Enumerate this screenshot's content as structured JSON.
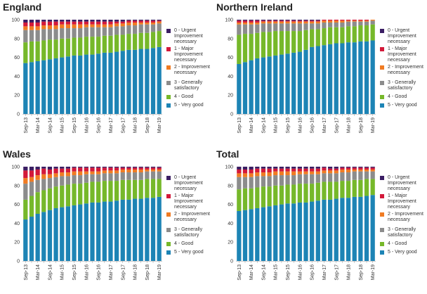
{
  "legend": [
    {
      "label": "0 - Urgent Improvement necessary",
      "color": "#3b1e63"
    },
    {
      "label": "1 - Major Improvement necessary",
      "color": "#d3193a"
    },
    {
      "label": "2 - Improvement necessary",
      "color": "#f07b23"
    },
    {
      "label": "3 - Generally satisfactory",
      "color": "#8c8c8c"
    },
    {
      "label": "4 - Good",
      "color": "#76b82a"
    },
    {
      "label": "5 - Very good",
      "color": "#1d84b5"
    }
  ],
  "chart_data": [
    {
      "type": "bar",
      "stacked": true,
      "title": "England",
      "ylim": [
        0,
        100
      ],
      "yticks": [
        0,
        20,
        40,
        60,
        80,
        100
      ],
      "categories": [
        "Sep-13",
        "",
        "Mar-14",
        "",
        "Sep-14",
        "",
        "Mar-15",
        "",
        "Sep-15",
        "",
        "Mar-16",
        "",
        "Sep-16",
        "",
        "Mar-17",
        "",
        "Sep-17",
        "",
        "Mar-18",
        "",
        "Sep-18",
        "",
        "Mar-19"
      ],
      "series": [
        {
          "name": "5 - Very good",
          "values": [
            54,
            55,
            56,
            57,
            58,
            59,
            60,
            61,
            62,
            62,
            63,
            63,
            64,
            65,
            65,
            66,
            67,
            68,
            68,
            69,
            69,
            70,
            71
          ]
        },
        {
          "name": "4 - Good",
          "values": [
            22,
            22,
            21,
            21,
            21,
            20,
            20,
            19,
            19,
            19,
            19,
            19,
            18,
            18,
            18,
            18,
            17,
            17,
            17,
            17,
            17,
            17,
            17
          ]
        },
        {
          "name": "3 - Generally satisfactory",
          "values": [
            13,
            12,
            12,
            12,
            11,
            11,
            11,
            11,
            10,
            10,
            10,
            10,
            10,
            9,
            9,
            9,
            9,
            9,
            9,
            9,
            9,
            8,
            8
          ]
        },
        {
          "name": "2 - Improvement necessary",
          "values": [
            4,
            4,
            4,
            4,
            4,
            4,
            4,
            4,
            4,
            4,
            3,
            3,
            3,
            3,
            3,
            3,
            3,
            3,
            3,
            2,
            2,
            2,
            2
          ]
        },
        {
          "name": "1 - Major Improvement necessary",
          "values": [
            4,
            4,
            4,
            4,
            4,
            4,
            3,
            3,
            3,
            3,
            3,
            3,
            3,
            3,
            3,
            2,
            2,
            2,
            2,
            2,
            2,
            2,
            1
          ]
        },
        {
          "name": "0 - Urgent Improvement necessary",
          "values": [
            3,
            3,
            3,
            2,
            2,
            2,
            2,
            2,
            2,
            2,
            2,
            2,
            2,
            2,
            2,
            2,
            2,
            1,
            1,
            1,
            1,
            1,
            1
          ]
        }
      ]
    },
    {
      "type": "bar",
      "stacked": true,
      "title": "Northern Ireland",
      "ylim": [
        0,
        100
      ],
      "yticks": [
        0,
        20,
        40,
        60,
        80,
        100
      ],
      "categories": [
        "Sep-13",
        "",
        "Mar-14",
        "",
        "Sep-14",
        "",
        "Mar-15",
        "",
        "Sep-15",
        "",
        "Mar-16",
        "",
        "Sep-16",
        "",
        "Mar-17",
        "",
        "Sep-17",
        "",
        "Mar-18",
        "",
        "Sep-18",
        "",
        "Mar-19"
      ],
      "series": [
        {
          "name": "5 - Very good",
          "values": [
            53,
            55,
            57,
            59,
            60,
            61,
            62,
            63,
            64,
            65,
            66,
            68,
            71,
            72,
            73,
            74,
            75,
            75,
            76,
            76,
            77,
            77,
            78
          ]
        },
        {
          "name": "4 - Good",
          "values": [
            31,
            30,
            28,
            27,
            27,
            26,
            26,
            25,
            24,
            23,
            22,
            21,
            19,
            18,
            18,
            18,
            17,
            17,
            17,
            17,
            17,
            17,
            17
          ]
        },
        {
          "name": "3 - Generally satisfactory",
          "values": [
            11,
            10,
            10,
            9,
            9,
            9,
            8,
            8,
            8,
            8,
            8,
            7,
            6,
            6,
            6,
            5,
            5,
            5,
            5,
            5,
            4,
            4,
            4
          ]
        },
        {
          "name": "2 - Improvement necessary",
          "values": [
            2,
            2,
            2,
            2,
            2,
            2,
            2,
            2,
            2,
            2,
            2,
            2,
            2,
            2,
            2,
            2,
            2,
            2,
            1,
            1,
            1,
            1,
            1
          ]
        },
        {
          "name": "1 - Major Improvement necessary",
          "values": [
            2,
            2,
            2,
            2,
            1,
            1,
            1,
            1,
            1,
            1,
            1,
            1,
            1,
            1,
            1,
            1,
            1,
            1,
            1,
            1,
            1,
            1,
            0
          ]
        },
        {
          "name": "0 - Urgent Improvement necessary",
          "values": [
            1,
            1,
            1,
            1,
            1,
            1,
            1,
            1,
            1,
            1,
            1,
            1,
            1,
            1,
            0,
            0,
            0,
            0,
            0,
            0,
            0,
            0,
            0
          ]
        }
      ]
    },
    {
      "type": "bar",
      "stacked": true,
      "title": "Wales",
      "ylim": [
        0,
        100
      ],
      "yticks": [
        0,
        20,
        40,
        60,
        80,
        100
      ],
      "categories": [
        "Sep-13",
        "",
        "Mar-14",
        "",
        "Sep-14",
        "",
        "Mar-15",
        "",
        "Sep-15",
        "",
        "Mar-16",
        "",
        "Sep-16",
        "",
        "Mar-17",
        "",
        "Sep-17",
        "",
        "Mar-18",
        "",
        "Sep-18",
        "",
        "Mar-19"
      ],
      "series": [
        {
          "name": "5 - Very good",
          "values": [
            44,
            47,
            50,
            52,
            54,
            56,
            57,
            58,
            59,
            60,
            61,
            62,
            62,
            63,
            63,
            64,
            65,
            65,
            66,
            66,
            67,
            67,
            68
          ]
        },
        {
          "name": "4 - Good",
          "values": [
            21,
            22,
            23,
            23,
            23,
            23,
            23,
            23,
            23,
            22,
            22,
            22,
            22,
            22,
            22,
            21,
            21,
            21,
            20,
            20,
            20,
            20,
            19
          ]
        },
        {
          "name": "3 - Generally satisfactory",
          "values": [
            17,
            15,
            13,
            12,
            11,
            10,
            10,
            9,
            9,
            9,
            9,
            8,
            8,
            8,
            8,
            8,
            8,
            8,
            8,
            8,
            8,
            8,
            8
          ]
        },
        {
          "name": "2 - Improvement necessary",
          "values": [
            6,
            5,
            5,
            5,
            4,
            4,
            4,
            4,
            4,
            4,
            3,
            3,
            3,
            3,
            3,
            3,
            3,
            3,
            3,
            3,
            2,
            2,
            2
          ]
        },
        {
          "name": "1 - Major Improvement necessary",
          "values": [
            8,
            7,
            6,
            6,
            5,
            5,
            4,
            4,
            4,
            4,
            4,
            4,
            4,
            3,
            3,
            3,
            2,
            2,
            2,
            2,
            2,
            2,
            2
          ]
        },
        {
          "name": "0 - Urgent Improvement necessary",
          "values": [
            4,
            4,
            3,
            2,
            3,
            2,
            2,
            2,
            1,
            1,
            1,
            1,
            1,
            1,
            1,
            1,
            1,
            1,
            1,
            1,
            1,
            1,
            1
          ]
        }
      ]
    },
    {
      "type": "bar",
      "stacked": true,
      "title": "Total",
      "ylim": [
        0,
        100
      ],
      "yticks": [
        0,
        20,
        40,
        60,
        80,
        100
      ],
      "categories": [
        "Sep-13",
        "",
        "Mar-14",
        "",
        "Sep-14",
        "",
        "Mar-15",
        "",
        "Sep-15",
        "",
        "Mar-16",
        "",
        "Sep-16",
        "",
        "Mar-17",
        "",
        "Sep-17",
        "",
        "Mar-18",
        "",
        "Sep-18",
        "",
        "Mar-19"
      ],
      "series": [
        {
          "name": "5 - Very good",
          "values": [
            53,
            54,
            55,
            56,
            57,
            58,
            59,
            60,
            61,
            61,
            62,
            62,
            63,
            64,
            65,
            65,
            66,
            67,
            67,
            68,
            68,
            69,
            70
          ]
        },
        {
          "name": "4 - Good",
          "values": [
            23,
            23,
            22,
            22,
            22,
            21,
            21,
            20,
            20,
            20,
            20,
            20,
            19,
            19,
            19,
            19,
            18,
            18,
            18,
            18,
            18,
            18,
            17
          ]
        },
        {
          "name": "3 - Generally satisfactory",
          "values": [
            13,
            12,
            12,
            12,
            11,
            11,
            11,
            11,
            10,
            10,
            10,
            10,
            10,
            9,
            9,
            9,
            9,
            9,
            9,
            9,
            9,
            8,
            8
          ]
        },
        {
          "name": "2 - Improvement necessary",
          "values": [
            4,
            4,
            4,
            4,
            4,
            4,
            4,
            4,
            4,
            4,
            3,
            3,
            3,
            3,
            3,
            3,
            3,
            3,
            3,
            2,
            2,
            2,
            2
          ]
        },
        {
          "name": "1 - Major Improvement necessary",
          "values": [
            4,
            4,
            4,
            4,
            4,
            4,
            3,
            3,
            3,
            3,
            3,
            3,
            3,
            3,
            3,
            2,
            2,
            2,
            2,
            2,
            2,
            2,
            2
          ]
        },
        {
          "name": "0 - Urgent Improvement necessary",
          "values": [
            3,
            3,
            3,
            2,
            2,
            2,
            2,
            2,
            2,
            2,
            2,
            2,
            2,
            2,
            1,
            2,
            2,
            1,
            1,
            1,
            1,
            1,
            1
          ]
        }
      ]
    }
  ]
}
